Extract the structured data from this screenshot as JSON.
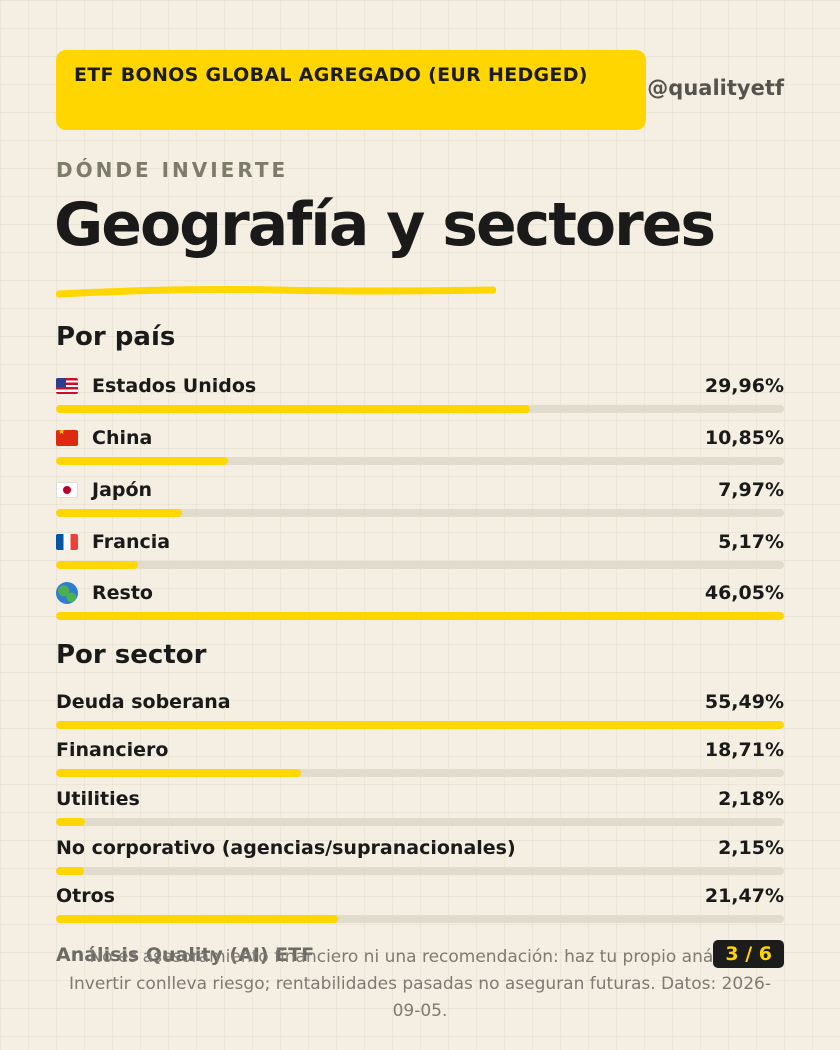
{
  "header": {
    "etf_name": "ETF BONOS GLOBAL AGREGADO (EUR HEDGED)",
    "handle": "@qualityetf"
  },
  "kicker": "DÓNDE INVIERTE",
  "title": "Geografía y sectores",
  "colors": {
    "accent": "#ffd600",
    "track": "#e0dbcc",
    "background": "#f4efe2",
    "text": "#1a1a1a"
  },
  "countries": {
    "heading": "Por país",
    "items": [
      {
        "label": "Estados Unidos",
        "value": "29,96%",
        "pct": 29.96,
        "icon": "us-flag-icon"
      },
      {
        "label": "China",
        "value": "10,85%",
        "pct": 10.85,
        "icon": "china-flag-icon"
      },
      {
        "label": "Japón",
        "value": "7,97%",
        "pct": 7.97,
        "icon": "japan-flag-icon"
      },
      {
        "label": "Francia",
        "value": "5,17%",
        "pct": 5.17,
        "icon": "france-flag-icon"
      },
      {
        "label": "Resto",
        "value": "46,05%",
        "pct": 46.05,
        "icon": "globe-icon"
      }
    ]
  },
  "sectors": {
    "heading": "Por sector",
    "items": [
      {
        "label": "Deuda soberana",
        "value": "55,49%",
        "pct": 55.49
      },
      {
        "label": "Financiero",
        "value": "18,71%",
        "pct": 18.71
      },
      {
        "label": "Utilities",
        "value": "2,18%",
        "pct": 2.18
      },
      {
        "label": "No corporativo (agencias/supranacionales)",
        "value": "2,15%",
        "pct": 2.15
      },
      {
        "label": "Otros",
        "value": "21,47%",
        "pct": 21.47
      }
    ]
  },
  "footer": {
    "brand": "Análisis Quality (AI) ETF",
    "disclaimer": "No es asesoramiento financiero ni una recomendación: haz tu propio análisis. Invertir conlleva riesgo; rentabilidades pasadas no aseguran futuras. Datos: 2026-09-05.",
    "page": "3 / 6"
  }
}
